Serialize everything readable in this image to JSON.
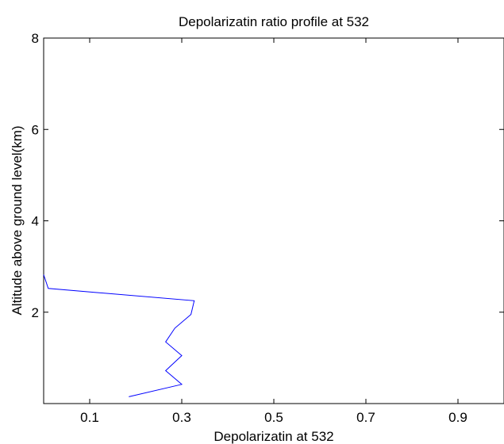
{
  "chart_data": {
    "type": "line",
    "title": "Depolarizatin ratio profile at 532",
    "xlabel": "Depolarizatin at 532",
    "ylabel": "Altitude above ground level(km)",
    "xlim": [
      0,
      1
    ],
    "ylim": [
      0,
      8
    ],
    "xticks": [
      {
        "value": 0.1,
        "label": "0.1"
      },
      {
        "value": 0.3,
        "label": "0.3"
      },
      {
        "value": 0.5,
        "label": "0.5"
      },
      {
        "value": 0.7,
        "label": "0.7"
      },
      {
        "value": 0.9,
        "label": "0.9"
      }
    ],
    "yticks": [
      {
        "value": 2,
        "label": "2"
      },
      {
        "value": 4,
        "label": "4"
      },
      {
        "value": 6,
        "label": "6"
      },
      {
        "value": 8,
        "label": "8"
      }
    ],
    "grid": false,
    "series": [
      {
        "color": "#0000ff",
        "x": [
          0.185,
          0.3,
          0.265,
          0.3,
          0.265,
          0.285,
          0.32,
          0.327,
          0.01,
          0.0
        ],
        "y": [
          0.15,
          0.42,
          0.72,
          1.05,
          1.35,
          1.65,
          1.95,
          2.25,
          2.52,
          2.82
        ]
      }
    ]
  }
}
